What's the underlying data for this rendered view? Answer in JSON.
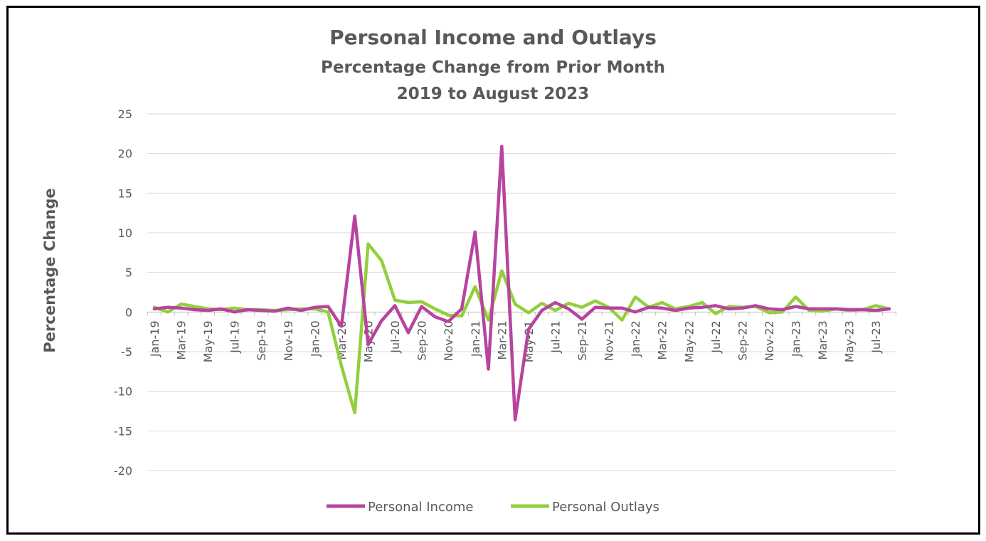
{
  "chart_data": {
    "type": "line",
    "title": "Personal Income and Outlays",
    "subtitle": "Percentage Change from Prior Month",
    "subtitle2": "2019 to August 2023",
    "ylabel": "Percentage Change",
    "xlabel": "",
    "ylim": [
      -20,
      25
    ],
    "yticks": [
      25,
      20,
      15,
      10,
      5,
      0,
      -5,
      -10,
      -15,
      -20
    ],
    "x": [
      "Jan-19",
      "Feb-19",
      "Mar-19",
      "Apr-19",
      "May-19",
      "Jun-19",
      "Jul-19",
      "Aug-19",
      "Sep-19",
      "Oct-19",
      "Nov-19",
      "Dec-19",
      "Jan-20",
      "Feb-20",
      "Mar-20",
      "Apr-20",
      "May-20",
      "Jun-20",
      "Jul-20",
      "Aug-20",
      "Sep-20",
      "Oct-20",
      "Nov-20",
      "Dec-20",
      "Jan-21",
      "Feb-21",
      "Mar-21",
      "Apr-21",
      "May-21",
      "Jun-21",
      "Jul-21",
      "Aug-21",
      "Sep-21",
      "Oct-21",
      "Nov-21",
      "Dec-21",
      "Jan-22",
      "Feb-22",
      "Mar-22",
      "Apr-22",
      "May-22",
      "Jun-22",
      "Jul-22",
      "Aug-22",
      "Sep-22",
      "Oct-22",
      "Nov-22",
      "Dec-22",
      "Jan-23",
      "Feb-23",
      "Mar-23",
      "Apr-23",
      "May-23",
      "Jun-23",
      "Jul-23",
      "Aug-23"
    ],
    "xtick_labels": [
      "Jan-19",
      "Mar-19",
      "May-19",
      "Jul-19",
      "Sep-19",
      "Nov-19",
      "Jan-20",
      "Mar-20",
      "May-20",
      "Jul-20",
      "Sep-20",
      "Nov-20",
      "Jan-21",
      "Mar-21",
      "May-21",
      "Jul-21",
      "Sep-21",
      "Nov-21",
      "Jan-22",
      "Mar-22",
      "May-22",
      "Jul-22",
      "Sep-22",
      "Nov-22",
      "Jan-23",
      "Mar-23",
      "May-23",
      "Jul-23"
    ],
    "series": [
      {
        "name": "Personal Income",
        "color": "#b7449e",
        "values": [
          0.4,
          0.6,
          0.5,
          0.3,
          0.2,
          0.4,
          0.0,
          0.3,
          0.2,
          0.1,
          0.5,
          0.2,
          0.6,
          0.7,
          -1.8,
          12.1,
          -4.1,
          -1.1,
          0.8,
          -2.6,
          0.7,
          -0.6,
          -1.2,
          0.4,
          10.1,
          -7.2,
          20.9,
          -13.6,
          -2.2,
          0.2,
          1.2,
          0.4,
          -0.9,
          0.6,
          0.5,
          0.5,
          0.0,
          0.6,
          0.5,
          0.2,
          0.5,
          0.6,
          0.8,
          0.4,
          0.5,
          0.8,
          0.4,
          0.3,
          0.7,
          0.4,
          0.4,
          0.4,
          0.3,
          0.3,
          0.2,
          0.4
        ]
      },
      {
        "name": "Personal Outlays",
        "color": "#92cf3c",
        "values": [
          0.6,
          0.0,
          1.0,
          0.7,
          0.4,
          0.3,
          0.5,
          0.3,
          0.3,
          0.2,
          0.3,
          0.4,
          0.4,
          0.0,
          -6.8,
          -12.7,
          8.6,
          6.5,
          1.5,
          1.2,
          1.3,
          0.4,
          -0.4,
          -0.5,
          3.2,
          -1.0,
          5.2,
          1.0,
          -0.1,
          1.1,
          0.2,
          1.1,
          0.6,
          1.4,
          0.6,
          -1.0,
          1.9,
          0.6,
          1.2,
          0.4,
          0.7,
          1.2,
          -0.2,
          0.7,
          0.6,
          0.7,
          -0.1,
          0.0,
          1.9,
          0.2,
          0.1,
          0.4,
          0.2,
          0.3,
          0.8,
          0.4
        ]
      }
    ],
    "legend": "bottom",
    "grid": true
  }
}
